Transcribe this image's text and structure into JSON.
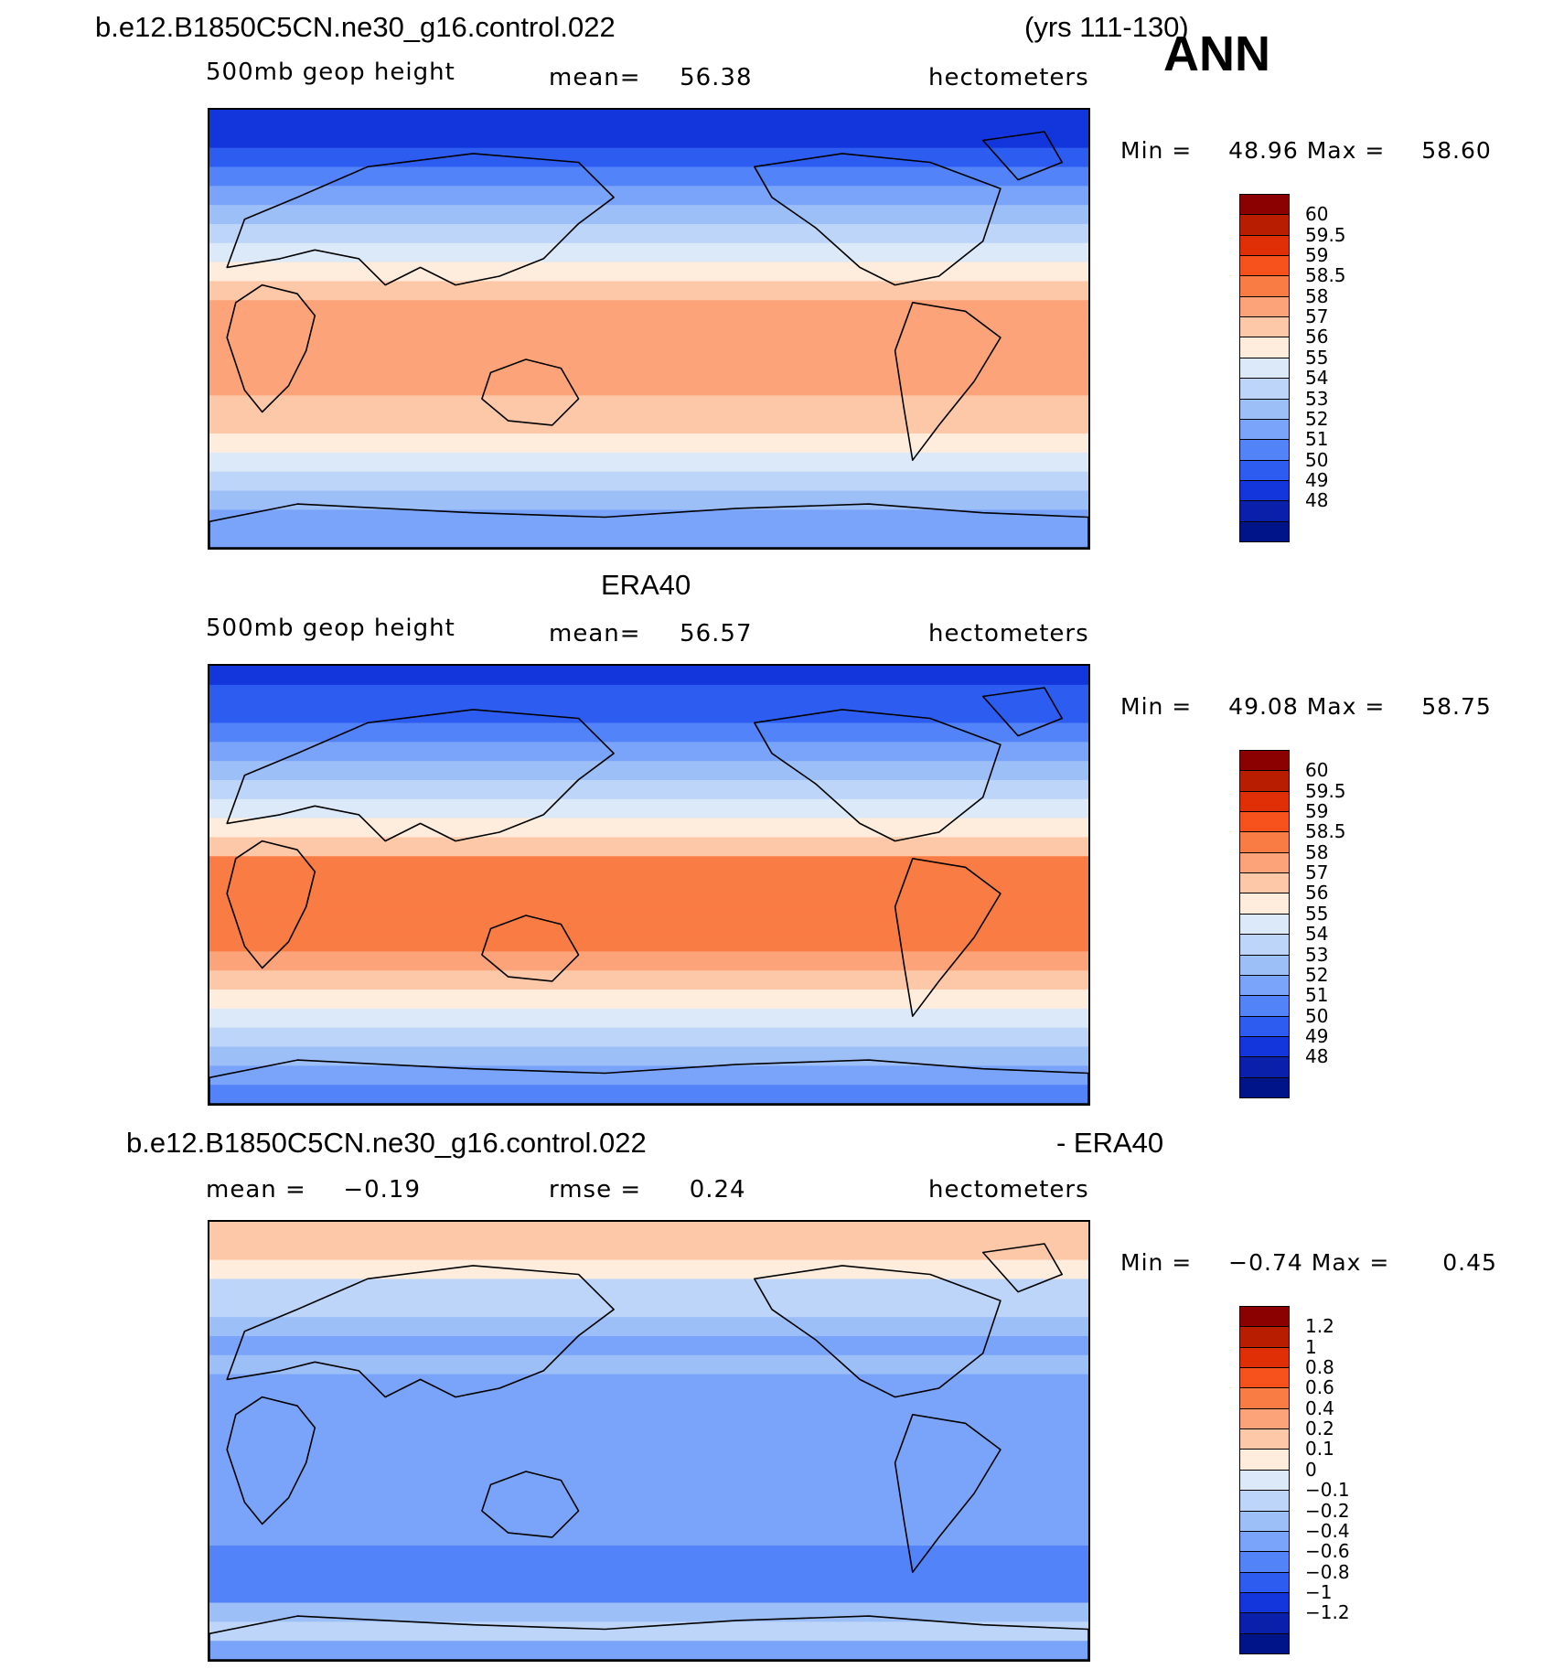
{
  "header": {
    "case_name": "b.e12.B1850C5CN.ne30_g16.control.022",
    "years": "(yrs 111-130)",
    "season": "ANN"
  },
  "chart_data": [
    {
      "type": "heatmap",
      "panel": "model",
      "title": "b.e12.B1850C5CN.ne30_g16.control.022",
      "variable": "500mb geop height",
      "mean_label": "mean=",
      "mean": "56.38",
      "units": "hectometers",
      "min_label": "Min =",
      "min": "48.96",
      "max_label": "Max =",
      "max": "58.60",
      "zonal_bands": [
        49.2,
        49.6,
        50.4,
        51.3,
        52.4,
        53.5,
        54.6,
        55.5,
        56.6,
        57.5,
        58.0,
        58.2,
        58.3,
        58.3,
        58.1,
        57.7,
        57.1,
        56.3,
        55.2,
        54.3,
        53.4,
        52.6,
        52.0
      ],
      "levels": [
        "60",
        "59.5",
        "59",
        "58.5",
        "58",
        "57",
        "56",
        "55",
        "54",
        "53",
        "52",
        "51",
        "50",
        "49",
        "48"
      ],
      "colors": [
        "#8b0000",
        "#b81d02",
        "#e02f07",
        "#f8521c",
        "#fa7c45",
        "#fca379",
        "#fdc8a8",
        "#feeddc",
        "#dce9f8",
        "#bdd5f8",
        "#9dbff8",
        "#7aa4fa",
        "#5383f8",
        "#2d5cf0",
        "#1236dc",
        "#0a1faa",
        "#00148a"
      ]
    },
    {
      "type": "heatmap",
      "panel": "obs",
      "title": "ERA40",
      "variable": "500mb geop height",
      "mean_label": "mean=",
      "mean": "56.57",
      "units": "hectometers",
      "min_label": "Min =",
      "min": "49.08",
      "max_label": "Max =",
      "max": "58.75",
      "zonal_bands": [
        49.5,
        50.0,
        50.8,
        51.7,
        52.8,
        53.8,
        54.8,
        55.8,
        56.8,
        57.8,
        58.6,
        58.6,
        58.6,
        58.6,
        58.6,
        58.2,
        57.4,
        56.5,
        55.3,
        54.2,
        53.3,
        52.4,
        51.6
      ],
      "levels": [
        "60",
        "59.5",
        "59",
        "58.5",
        "58",
        "57",
        "56",
        "55",
        "54",
        "53",
        "52",
        "51",
        "50",
        "49",
        "48"
      ],
      "colors": [
        "#8b0000",
        "#b81d02",
        "#e02f07",
        "#f8521c",
        "#fa7c45",
        "#fca379",
        "#fdc8a8",
        "#feeddc",
        "#dce9f8",
        "#bdd5f8",
        "#9dbff8",
        "#7aa4fa",
        "#5383f8",
        "#2d5cf0",
        "#1236dc",
        "#0a1faa",
        "#00148a"
      ]
    },
    {
      "type": "heatmap",
      "panel": "difference",
      "title_left": "b.e12.B1850C5CN.ne30_g16.control.022",
      "title_right": "- ERA40",
      "mean_label": "mean =",
      "mean": "−0.19",
      "rmse_label": "rmse =",
      "rmse": "0.24",
      "units": "hectometers",
      "min_label": "Min =",
      "min": "−0.74",
      "max_label": "Max =",
      "max": "0.45",
      "zonal_bands": [
        0.3,
        0.25,
        0.1,
        -0.05,
        -0.1,
        -0.2,
        -0.25,
        -0.2,
        -0.25,
        -0.3,
        -0.3,
        -0.3,
        -0.3,
        -0.3,
        -0.3,
        -0.3,
        -0.35,
        -0.5,
        -0.55,
        -0.45,
        -0.2,
        -0.1,
        -0.3
      ],
      "levels": [
        "1.2",
        "1",
        "0.8",
        "0.6",
        "0.4",
        "0.2",
        "0.1",
        "0",
        "−0.1",
        "−0.2",
        "−0.4",
        "−0.6",
        "−0.8",
        "−1",
        "−1.2"
      ],
      "colors": [
        "#8b0000",
        "#b81d02",
        "#e02f07",
        "#f8521c",
        "#fa7c45",
        "#fca379",
        "#fdc8a8",
        "#feeddc",
        "#dce9f8",
        "#bdd5f8",
        "#9dbff8",
        "#7aa4fa",
        "#5383f8",
        "#2d5cf0",
        "#1236dc",
        "#0a1faa",
        "#00148a"
      ]
    }
  ]
}
